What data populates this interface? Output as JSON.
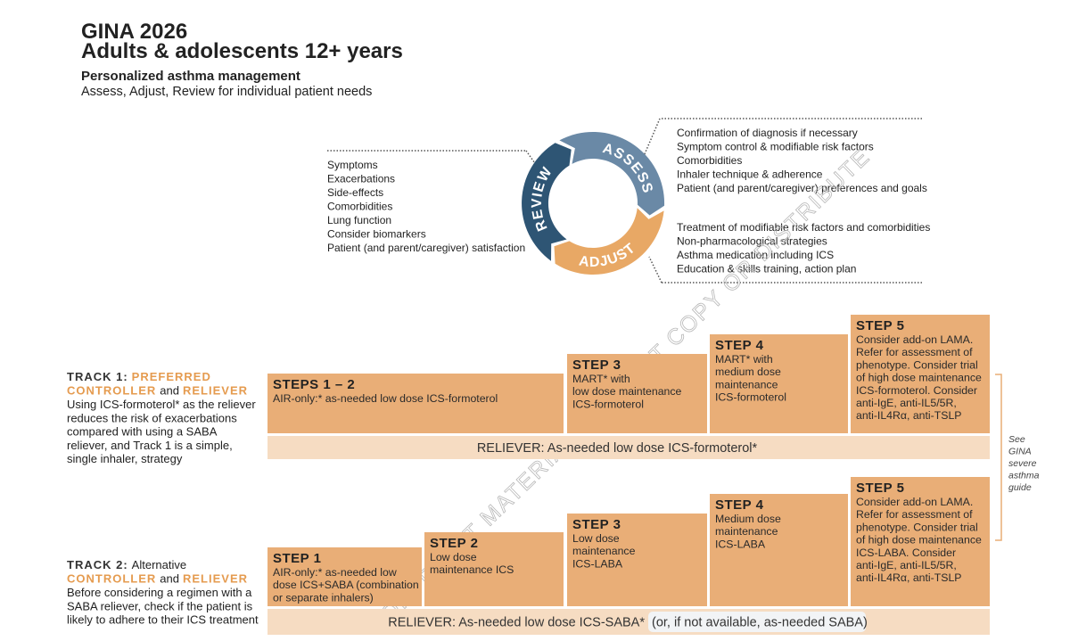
{
  "header": {
    "title": "GINA 2026",
    "subtitle": "Adults & adolescents 12+ years",
    "heading": "Personalized asthma management",
    "description": "Assess, Adjust, Review for individual patient needs"
  },
  "cycle": {
    "assess": "ASSESS",
    "adjust": "ADJUST",
    "review": "REVIEW"
  },
  "review_list": [
    "Symptoms",
    "Exacerbations",
    "Side-effects",
    "Comorbidities",
    "Lung function",
    "Consider biomarkers",
    "Patient (and parent/caregiver) satisfaction"
  ],
  "assess_list": [
    "Confirmation of diagnosis if necessary",
    "Symptom control & modifiable risk factors",
    "Comorbidities",
    "Inhaler technique & adherence",
    "Patient (and parent/caregiver) preferences and goals"
  ],
  "adjust_list": [
    "Treatment of modifiable risk factors and comorbidities",
    "Non-pharmacological strategies",
    "Asthma medication including ICS",
    "Education & skills training, action plan"
  ],
  "tracks": [
    {
      "heading": [
        [
          "TRACK 1:",
          "PREFERRED"
        ],
        [
          "CONTROLLER",
          "and",
          "RELIEVER"
        ]
      ],
      "description": [
        "Using ICS-formoterol* as the reliever",
        "reduces the risk of exacerbations",
        "compared with using a SABA",
        "reliever, and Track 1 is a simple,",
        "single inhaler, strategy"
      ],
      "steps": [
        {
          "title": "STEPS 1 – 2",
          "lines": [
            "AIR-only:* as-needed low dose ICS-formoterol"
          ]
        },
        {
          "title": "STEP 3",
          "lines": [
            "MART* with",
            "low dose maintenance",
            "ICS-formoterol"
          ]
        },
        {
          "title": "STEP 4",
          "lines": [
            "MART* with",
            "medium dose",
            "maintenance",
            "ICS-formoterol"
          ]
        },
        {
          "title": "STEP 5",
          "lines": [
            "Consider add-on LAMA.",
            "Refer for assessment of",
            "phenotype. Consider trial",
            "of high dose maintenance",
            "ICS-formoterol. Consider",
            "anti-IgE, anti-IL5/5R,",
            "anti-IL4Rα, anti-TSLP"
          ]
        }
      ],
      "reliever": "RELIEVER: As-needed low dose ICS-formoterol*"
    },
    {
      "heading": [
        [
          "TRACK 2:",
          "Alternative"
        ],
        [
          "CONTROLLER",
          "and",
          "RELIEVER"
        ]
      ],
      "description": [
        "Before considering a regimen with a",
        "SABA reliever, check if the patient is",
        "likely to adhere to their ICS treatment"
      ],
      "steps": [
        {
          "title": "STEP 1",
          "lines": [
            "AIR-only:* as-needed low",
            "dose ICS+SABA (combination",
            "or separate inhalers)"
          ]
        },
        {
          "title": "STEP 2",
          "lines": [
            "Low dose",
            "maintenance ICS"
          ]
        },
        {
          "title": "STEP 3",
          "lines": [
            "Low dose",
            "maintenance",
            "ICS-LABA"
          ]
        },
        {
          "title": "STEP 4",
          "lines": [
            "Medium dose",
            "maintenance",
            "ICS-LABA"
          ]
        },
        {
          "title": "STEP 5",
          "lines": [
            "Consider add-on LAMA.",
            "Refer for assessment of",
            "phenotype. Consider trial",
            "of high dose maintenance",
            "ICS-LABA. Consider",
            "anti-IgE, anti-IL5/5R,",
            "anti-IL4Rα, anti-TSLP"
          ]
        }
      ],
      "reliever": "RELIEVER: As-needed low dose ICS-SABA*",
      "reliever_note": "(or, if not available, as-needed SABA)"
    }
  ],
  "side_note": [
    "See",
    "GINA",
    "severe",
    "asthma",
    "guide"
  ],
  "watermark": "COPYRIGHT MATERIAL – DO NOT COPY OR DISTRIBUTE"
}
